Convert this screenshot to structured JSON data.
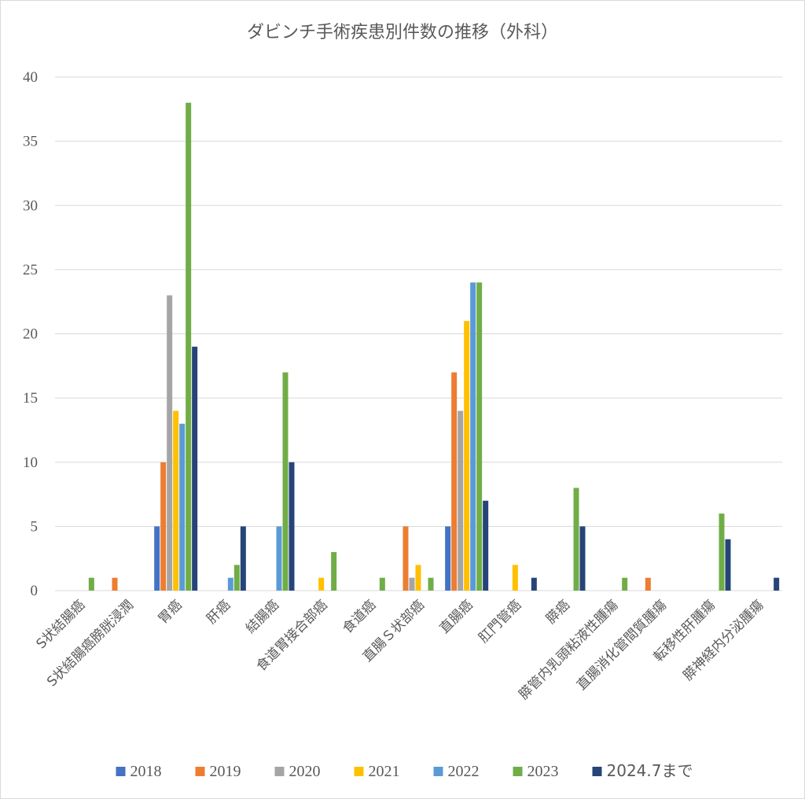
{
  "chart_data": {
    "type": "bar",
    "title": "ダビンチ手術疾患別件数の推移（外科）",
    "categories": [
      "S状結腸癌",
      "S状結腸癌膀胱浸潤",
      "胃癌",
      "肝癌",
      "結腸癌",
      "食道胃接合部癌",
      "食道癌",
      "直腸Ｓ状部癌",
      "直腸癌",
      "肛門管癌",
      "膵癌",
      "膵管内乳頭粘液性腫瘍",
      "直腸消化管間質腫瘍",
      "転移性肝腫瘍",
      "膵神経内分泌腫瘍"
    ],
    "series": [
      {
        "name": "2018",
        "color": "#4472C4",
        "values": [
          0,
          0,
          5,
          0,
          0,
          0,
          0,
          0,
          5,
          0,
          0,
          0,
          0,
          0,
          0
        ]
      },
      {
        "name": "2019",
        "color": "#ED7D31",
        "values": [
          0,
          1,
          10,
          0,
          0,
          0,
          0,
          5,
          17,
          0,
          0,
          0,
          1,
          0,
          0
        ]
      },
      {
        "name": "2020",
        "color": "#A5A5A5",
        "values": [
          0,
          0,
          23,
          0,
          0,
          0,
          0,
          1,
          14,
          0,
          0,
          0,
          0,
          0,
          0
        ]
      },
      {
        "name": "2021",
        "color": "#FFC000",
        "values": [
          0,
          0,
          14,
          0,
          0,
          1,
          0,
          2,
          21,
          2,
          0,
          0,
          0,
          0,
          0
        ]
      },
      {
        "name": "2022",
        "color": "#5B9BD5",
        "values": [
          0,
          0,
          13,
          1,
          5,
          0,
          0,
          0,
          24,
          0,
          0,
          0,
          0,
          0,
          0
        ]
      },
      {
        "name": "2023",
        "color": "#70AD47",
        "values": [
          1,
          0,
          38,
          2,
          17,
          3,
          1,
          1,
          24,
          0,
          8,
          1,
          0,
          6,
          0
        ]
      },
      {
        "name": "2024.7まで",
        "color": "#264478",
        "values": [
          0,
          0,
          19,
          5,
          10,
          0,
          0,
          0,
          7,
          1,
          5,
          0,
          0,
          4,
          1
        ]
      }
    ],
    "ylim": [
      0,
      40
    ],
    "yticks": [
      0,
      5,
      10,
      15,
      20,
      25,
      30,
      35,
      40
    ],
    "grid": true,
    "legend": "bottom"
  }
}
